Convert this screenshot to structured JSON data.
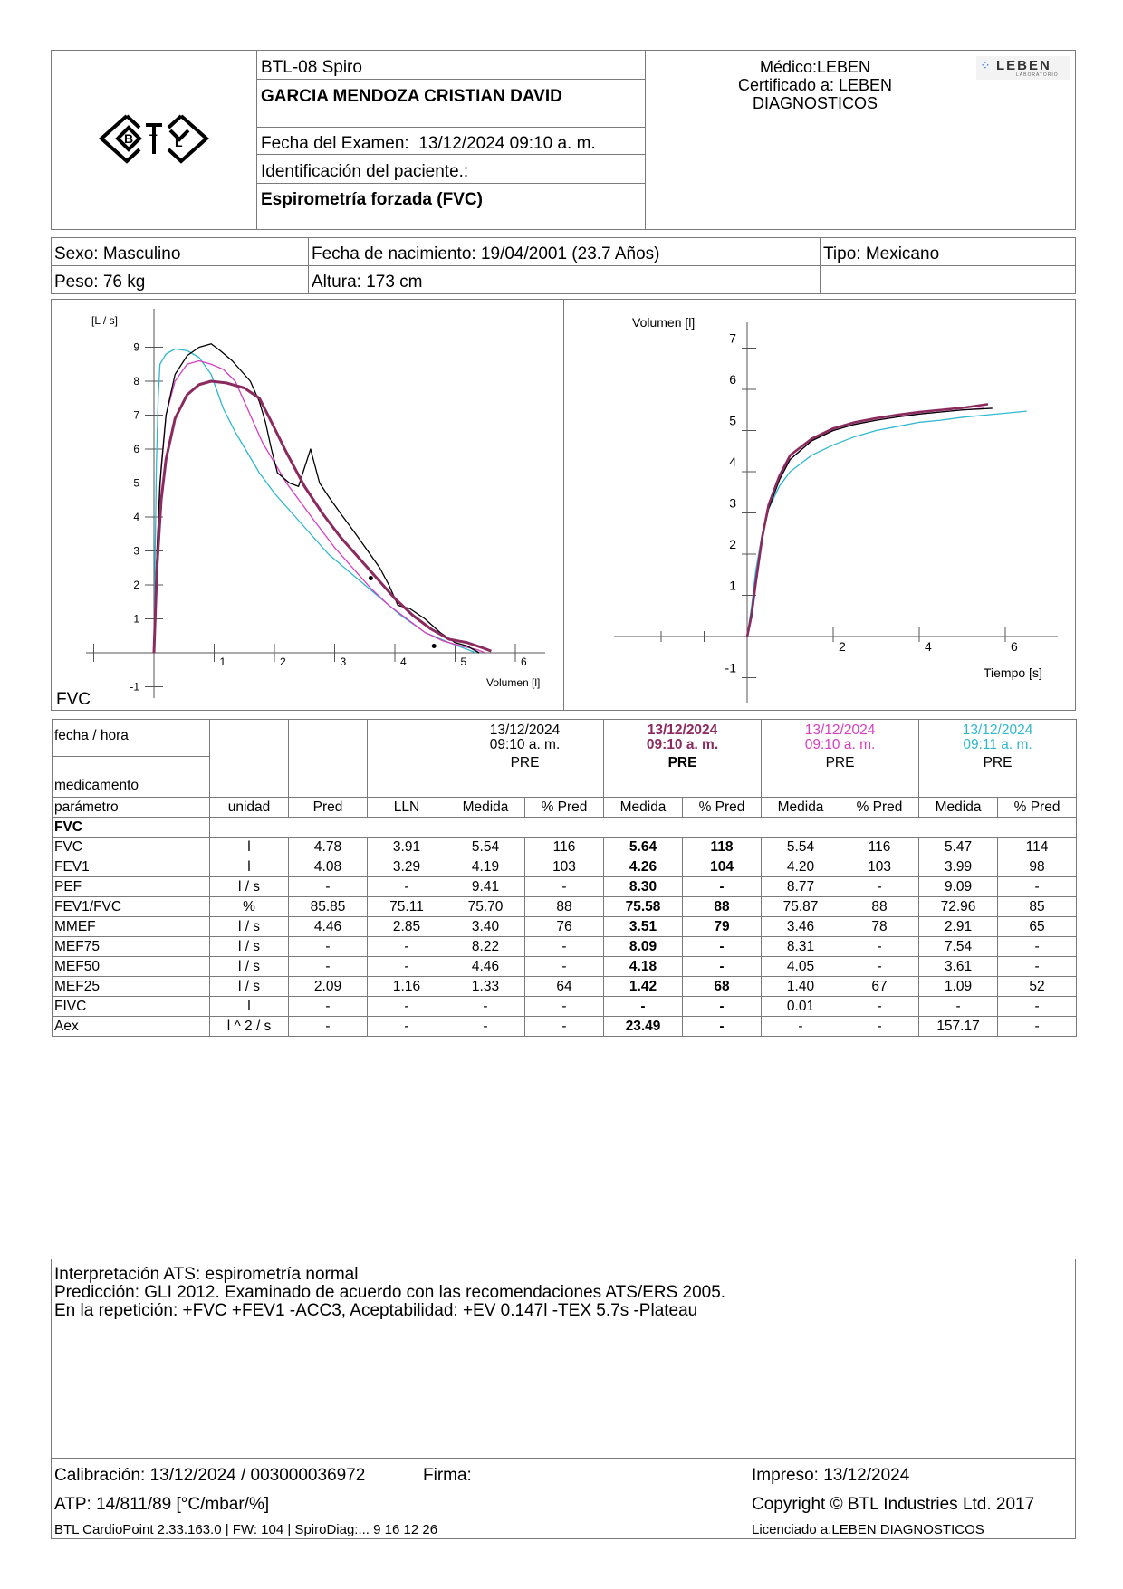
{
  "header": {
    "device": "BTL-08 Spiro",
    "patient_name": "GARCIA MENDOZA CRISTIAN DAVID",
    "exam_date_label": "Fecha del Examen:",
    "exam_date": "13/12/2024 09:10 a. m.",
    "patient_id_label": "Identificación del paciente.:",
    "test_type": "Espirometría forzada (FVC)",
    "doctor": "Médico:LEBEN",
    "certified_line1": "Certificado a: LEBEN",
    "certified_line2": "DIAGNOSTICOS",
    "logo_text": "LEBEN",
    "logo_sub": "LABORATORIO"
  },
  "patient": {
    "sex": "Sexo: Masculino",
    "dob": "Fecha de nacimiento: 19/04/2001 (23.7 Años)",
    "type": "Tipo: Mexicano",
    "weight": "Peso: 76 kg",
    "height": "Altura: 173 cm"
  },
  "charts_labels": {
    "fv_ylabel": "[L / s]",
    "fv_xlabel": "Volumen [l]",
    "fv_title": "FVC",
    "vt_ylabel": "Volumen [l]",
    "vt_xlabel": "Tiempo [s]"
  },
  "chart_data": [
    {
      "type": "line",
      "ylabel": "[L / s]",
      "xlabel": "Volumen [l]",
      "xlim": [
        -1,
        6.5
      ],
      "ylim": [
        -1,
        9.5
      ],
      "xticks": [
        1,
        2,
        3,
        4,
        5,
        6
      ],
      "yticks": [
        -1,
        1,
        2,
        3,
        4,
        5,
        6,
        7,
        8,
        9
      ],
      "colors": {
        "s1": "#000000",
        "s2": "#8b2a5e",
        "s3": "#d63fbf",
        "s4": "#2fb8cf"
      },
      "series": [
        {
          "color": "#000000",
          "x": [
            0,
            0.02,
            0.05,
            0.1,
            0.2,
            0.35,
            0.55,
            0.75,
            0.95,
            1.1,
            1.3,
            1.45,
            1.6,
            1.75,
            1.85,
            1.95,
            2.05,
            2.25,
            2.4,
            2.6,
            2.75,
            2.9,
            3.1,
            3.35,
            3.55,
            3.75,
            3.9,
            4.05,
            4.25,
            4.5,
            4.75,
            5.0,
            5.2,
            5.4
          ],
          "y": [
            0,
            1.5,
            3.0,
            5.0,
            7.0,
            8.2,
            8.75,
            9.0,
            9.1,
            8.9,
            8.6,
            8.3,
            8.0,
            7.4,
            6.8,
            6.0,
            5.3,
            5.0,
            4.9,
            6.0,
            5.0,
            4.6,
            4.1,
            3.5,
            3.0,
            2.5,
            2.0,
            1.4,
            1.3,
            1.0,
            0.6,
            0.3,
            0.2,
            0.0
          ]
        },
        {
          "color": "#8b2a5e",
          "x": [
            0,
            0.05,
            0.12,
            0.2,
            0.35,
            0.55,
            0.75,
            0.95,
            1.2,
            1.5,
            1.75,
            1.95,
            2.2,
            2.5,
            2.8,
            3.1,
            3.4,
            3.7,
            4.0,
            4.3,
            4.6,
            4.9,
            5.2,
            5.45,
            5.6
          ],
          "y": [
            0,
            2.5,
            4.5,
            5.7,
            6.9,
            7.6,
            7.9,
            8.0,
            7.95,
            7.8,
            7.5,
            6.8,
            5.9,
            4.9,
            4.1,
            3.4,
            2.8,
            2.2,
            1.6,
            1.1,
            0.7,
            0.4,
            0.3,
            0.15,
            0.05
          ]
        },
        {
          "color": "#d63fbf",
          "x": [
            0,
            0.05,
            0.12,
            0.2,
            0.35,
            0.55,
            0.75,
            0.95,
            1.15,
            1.35,
            1.55,
            1.8,
            2.0,
            2.2,
            2.45,
            2.7,
            3.0,
            3.3,
            3.6,
            3.9,
            4.2,
            4.5,
            4.8,
            5.1,
            5.35,
            5.5
          ],
          "y": [
            0,
            3.0,
            5.5,
            7.0,
            8.0,
            8.5,
            8.6,
            8.5,
            8.35,
            8.0,
            7.2,
            6.2,
            5.6,
            5.0,
            4.4,
            3.8,
            3.1,
            2.5,
            1.9,
            1.4,
            1.0,
            0.6,
            0.35,
            0.2,
            0.1,
            0.0
          ]
        },
        {
          "color": "#2fb8cf",
          "x": [
            0,
            0.02,
            0.04,
            0.07,
            0.1,
            0.2,
            0.35,
            0.55,
            0.75,
            0.95,
            1.15,
            1.35,
            1.55,
            1.75,
            2.0,
            2.3,
            2.6,
            2.9,
            3.3,
            3.7,
            4.1,
            4.5,
            4.9,
            5.2,
            5.35
          ],
          "y": [
            0,
            3.0,
            5.5,
            7.5,
            8.5,
            8.8,
            8.95,
            8.9,
            8.7,
            8.2,
            7.2,
            6.5,
            5.9,
            5.3,
            4.7,
            4.1,
            3.5,
            2.9,
            2.3,
            1.7,
            1.1,
            0.6,
            0.3,
            0.1,
            0.0
          ]
        }
      ],
      "markers": [
        {
          "x": 3.6,
          "y": 2.2
        },
        {
          "x": 4.65,
          "y": 0.2
        }
      ]
    },
    {
      "type": "line",
      "ylabel": "Volumen [l]",
      "xlabel": "Tiempo [s]",
      "xlim": [
        -3,
        7
      ],
      "ylim": [
        -1.5,
        7.5
      ],
      "xticks": [
        2,
        4,
        6
      ],
      "yticks": [
        -1,
        1,
        2,
        3,
        4,
        5,
        6,
        7
      ],
      "series": [
        {
          "color": "#000000",
          "x": [
            0,
            0.1,
            0.2,
            0.35,
            0.5,
            0.75,
            1.0,
            1.5,
            2.0,
            2.5,
            3.0,
            3.5,
            4.0,
            4.5,
            5.0,
            5.7
          ],
          "y": [
            0,
            0.6,
            1.4,
            2.4,
            3.1,
            3.8,
            4.3,
            4.75,
            5.0,
            5.15,
            5.25,
            5.33,
            5.4,
            5.45,
            5.5,
            5.54
          ]
        },
        {
          "color": "#8b2a5e",
          "x": [
            0,
            0.1,
            0.2,
            0.35,
            0.5,
            0.75,
            1.0,
            1.5,
            2.0,
            2.5,
            3.0,
            3.5,
            4.0,
            4.5,
            5.0,
            5.6
          ],
          "y": [
            0,
            0.5,
            1.3,
            2.4,
            3.2,
            3.9,
            4.4,
            4.8,
            5.05,
            5.2,
            5.3,
            5.38,
            5.45,
            5.5,
            5.55,
            5.64
          ]
        },
        {
          "color": "#d63fbf",
          "x": [
            0,
            0.1,
            0.2,
            0.35,
            0.5,
            0.75,
            1.0,
            1.5,
            2.0,
            2.5,
            3.0,
            3.5,
            4.0,
            4.5,
            5.0,
            5.5
          ],
          "y": [
            0,
            0.55,
            1.4,
            2.5,
            3.2,
            3.85,
            4.3,
            4.75,
            5.0,
            5.15,
            5.25,
            5.33,
            5.4,
            5.45,
            5.5,
            5.54
          ]
        },
        {
          "color": "#2fb8cf",
          "x": [
            0,
            0.1,
            0.2,
            0.35,
            0.5,
            0.75,
            1.0,
            1.5,
            2.0,
            2.5,
            3.0,
            3.5,
            4.0,
            4.5,
            5.0,
            5.5,
            6.0,
            6.5
          ],
          "y": [
            0,
            0.7,
            1.6,
            2.5,
            3.1,
            3.65,
            4.0,
            4.4,
            4.65,
            4.85,
            5.0,
            5.1,
            5.2,
            5.25,
            5.32,
            5.37,
            5.42,
            5.47
          ]
        }
      ]
    }
  ],
  "table": {
    "row_fecha": "fecha / hora",
    "row_medicamento": "medicamento",
    "tests": [
      {
        "date": "13/12/2024",
        "time": "09:10 a. m.",
        "med": "PRE",
        "color": "#000000",
        "bold": false
      },
      {
        "date": "13/12/2024",
        "time": "09:10 a. m.",
        "med": "PRE",
        "color": "#8b2a5e",
        "bold": true
      },
      {
        "date": "13/12/2024",
        "time": "09:10 a. m.",
        "med": "PRE",
        "color": "#d63fbf",
        "bold": false
      },
      {
        "date": "13/12/2024",
        "time": "09:11 a. m.",
        "med": "PRE",
        "color": "#2fb8cf",
        "bold": false
      }
    ],
    "columns": [
      "parámetro",
      "unidad",
      "Pred",
      "LLN",
      "Medida",
      "% Pred",
      "Medida",
      "% Pred",
      "Medida",
      "% Pred",
      "Medida",
      "% Pred"
    ],
    "section": "FVC",
    "rows": [
      [
        "FVC",
        "l",
        "4.78",
        "3.91",
        "5.54",
        "116",
        "5.64",
        "118",
        "5.54",
        "116",
        "5.47",
        "114"
      ],
      [
        "FEV1",
        "l",
        "4.08",
        "3.29",
        "4.19",
        "103",
        "4.26",
        "104",
        "4.20",
        "103",
        "3.99",
        "98"
      ],
      [
        "PEF",
        "l / s",
        "-",
        "-",
        "9.41",
        "-",
        "8.30",
        "-",
        "8.77",
        "-",
        "9.09",
        "-"
      ],
      [
        "FEV1/FVC",
        "%",
        "85.85",
        "75.11",
        "75.70",
        "88",
        "75.58",
        "88",
        "75.87",
        "88",
        "72.96",
        "85"
      ],
      [
        "MMEF",
        "l / s",
        "4.46",
        "2.85",
        "3.40",
        "76",
        "3.51",
        "79",
        "3.46",
        "78",
        "2.91",
        "65"
      ],
      [
        "MEF75",
        "l / s",
        "-",
        "-",
        "8.22",
        "-",
        "8.09",
        "-",
        "8.31",
        "-",
        "7.54",
        "-"
      ],
      [
        "MEF50",
        "l / s",
        "-",
        "-",
        "4.46",
        "-",
        "4.18",
        "-",
        "4.05",
        "-",
        "3.61",
        "-"
      ],
      [
        "MEF25",
        "l / s",
        "2.09",
        "1.16",
        "1.33",
        "64",
        "1.42",
        "68",
        "1.40",
        "67",
        "1.09",
        "52"
      ],
      [
        "FIVC",
        "l",
        "-",
        "-",
        "-",
        "-",
        "-",
        "-",
        "0.01",
        "-",
        "-",
        "-"
      ],
      [
        "Aex",
        "l ^ 2 / s",
        "-",
        "-",
        "-",
        "-",
        "23.49",
        "-",
        "-",
        "-",
        "157.17",
        "-"
      ]
    ]
  },
  "interpretation": {
    "line1": "Interpretación ATS: espirometría normal",
    "line2": "Predicción: GLI 2012. Examinado de acuerdo con las recomendaciones ATS/ERS 2005.",
    "line3": "En la repetición: +FVC +FEV1 -ACC3, Aceptabilidad: +EV 0.147l -TEX 5.7s -Plateau"
  },
  "footer": {
    "calibration": "Calibración: 13/12/2024 / 003000036972",
    "firma": "Firma:",
    "printed": "Impreso: 13/12/2024",
    "atp": "ATP: 14/811/89 [°C/mbar/%]",
    "copyright": "Copyright © BTL Industries Ltd. 2017",
    "version": "BTL CardioPoint 2.33.163.0 | FW: 104 | SpiroDiag:... 9 16 12 26",
    "licensed": "Licenciado a:LEBEN DIAGNOSTICOS"
  }
}
